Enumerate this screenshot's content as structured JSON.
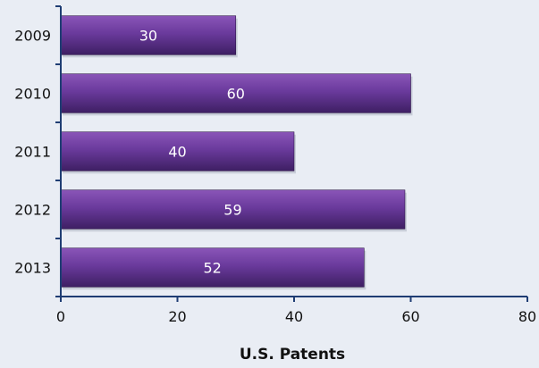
{
  "chart_data": {
    "type": "bar",
    "orientation": "horizontal",
    "categories": [
      "2009",
      "2010",
      "2011",
      "2012",
      "2013"
    ],
    "values": [
      30,
      60,
      40,
      59,
      52
    ],
    "title": "",
    "xlabel": "U.S. Patents",
    "ylabel": "",
    "xlim": [
      0,
      80
    ],
    "x_ticks": [
      "0",
      "20",
      "40",
      "60",
      "80"
    ],
    "grid": false,
    "legend": "none",
    "data_labels": "inside-center"
  },
  "colors": {
    "background": "#e9edf4",
    "bar_fill_top": "#8a55b8",
    "bar_fill_mid": "#6a3a9c",
    "bar_fill_bottom": "#3e1f63",
    "bar_shadow": "#b9bfcc",
    "axis": "#1f3d73",
    "label_text": "#ffffff",
    "tick_text": "#111111"
  }
}
